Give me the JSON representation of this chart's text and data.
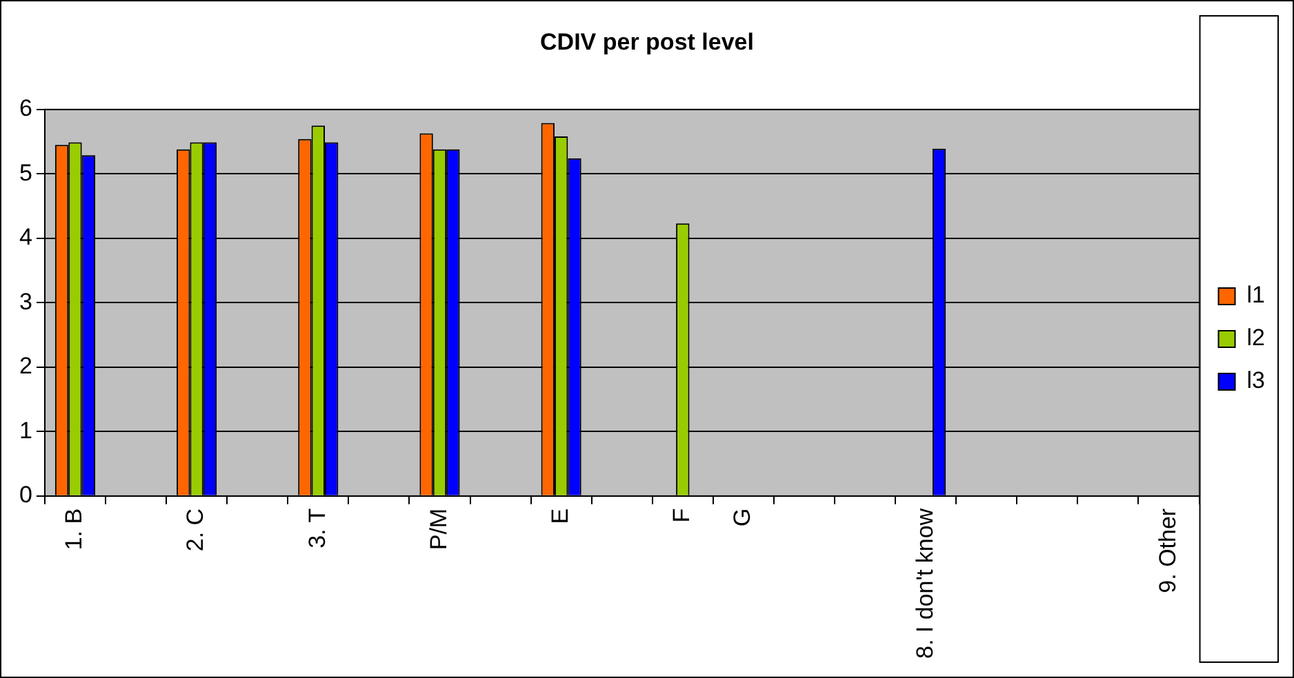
{
  "chart_data": {
    "type": "bar",
    "title": "CDIV per post level",
    "categories": [
      "1. B",
      null,
      "2. C",
      null,
      "3. T",
      null,
      "P/M",
      null,
      "E",
      null,
      "F",
      "G",
      null,
      null,
      "8. I don't know",
      null,
      null,
      null,
      "9. Other"
    ],
    "series": [
      {
        "name": "l1",
        "color": "#ff6600",
        "values": [
          5.45,
          null,
          5.38,
          null,
          5.54,
          null,
          5.63,
          null,
          5.79,
          null,
          null,
          null,
          null,
          null,
          null,
          null,
          null,
          null,
          null
        ]
      },
      {
        "name": "l2",
        "color": "#99cc00",
        "values": [
          5.49,
          null,
          5.49,
          null,
          5.75,
          null,
          5.38,
          null,
          5.58,
          null,
          4.23,
          null,
          null,
          null,
          null,
          null,
          null,
          null,
          null
        ]
      },
      {
        "name": "l3",
        "color": "#0000ff",
        "values": [
          5.29,
          null,
          5.49,
          null,
          5.49,
          null,
          5.38,
          null,
          5.24,
          null,
          null,
          null,
          null,
          null,
          5.39,
          null,
          null,
          null,
          null
        ]
      }
    ],
    "ylim": [
      0,
      6
    ],
    "yticks": [
      0,
      1,
      2,
      3,
      4,
      5,
      6
    ],
    "grid": "y",
    "legend": "right"
  }
}
